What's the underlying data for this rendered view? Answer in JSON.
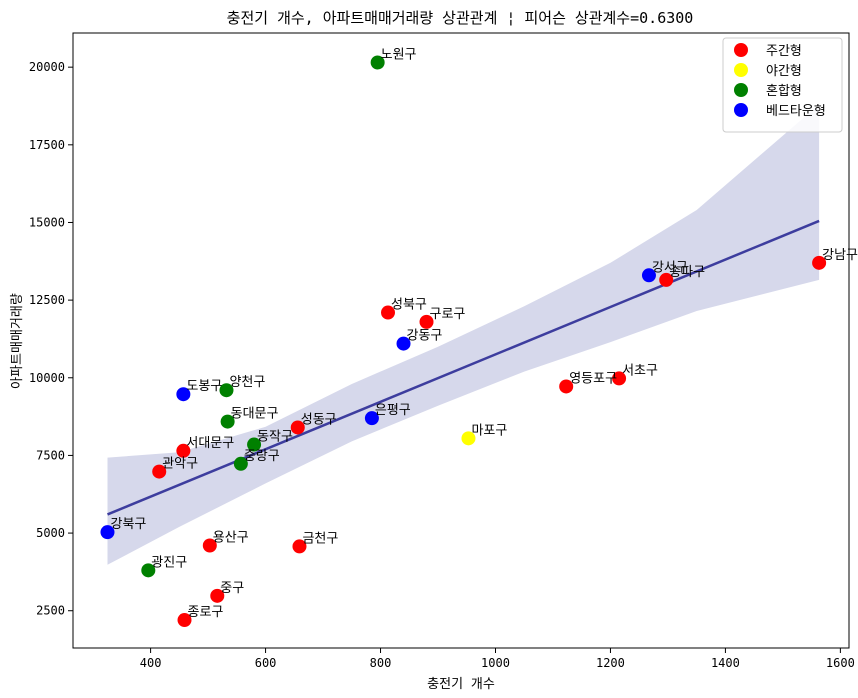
{
  "chart_data": {
    "type": "scatter",
    "title": "충전기 개수, 아파트매매거래량 상관관계 ¦ 피어슨 상관계수=0.6300",
    "xlabel": "충전기 개수",
    "ylabel": "아파트매매거래량",
    "xlim": [
      265,
      1615
    ],
    "ylim": [
      1300,
      21100
    ],
    "xticks": [
      400,
      600,
      800,
      1000,
      1200,
      1400,
      1600
    ],
    "yticks": [
      2500,
      5000,
      7500,
      10000,
      12500,
      15000,
      17500,
      20000
    ],
    "legend_position": "top-right",
    "series": [
      {
        "name": "주간형",
        "color": "#ff0000"
      },
      {
        "name": "야간형",
        "color": "#ffff00"
      },
      {
        "name": "혼합형",
        "color": "#008000"
      },
      {
        "name": "베드타운형",
        "color": "#0000ff"
      }
    ],
    "points": [
      {
        "label": "노원구",
        "x": 795,
        "y": 20150,
        "series": "혼합형"
      },
      {
        "label": "강남구",
        "x": 1563,
        "y": 13700,
        "series": "주간형"
      },
      {
        "label": "강서구",
        "x": 1267,
        "y": 13300,
        "series": "베드타운형"
      },
      {
        "label": "송파구",
        "x": 1297,
        "y": 13150,
        "series": "주간형"
      },
      {
        "label": "성북구",
        "x": 813,
        "y": 12100,
        "series": "주간형"
      },
      {
        "label": "구로구",
        "x": 880,
        "y": 11800,
        "series": "주간형"
      },
      {
        "label": "강동구",
        "x": 840,
        "y": 11100,
        "series": "베드타운형"
      },
      {
        "label": "서초구",
        "x": 1215,
        "y": 9980,
        "series": "주간형"
      },
      {
        "label": "영등포구",
        "x": 1123,
        "y": 9720,
        "series": "주간형"
      },
      {
        "label": "도봉구",
        "x": 457,
        "y": 9470,
        "series": "베드타운형"
      },
      {
        "label": "양천구",
        "x": 532,
        "y": 9600,
        "series": "혼합형"
      },
      {
        "label": "은평구",
        "x": 785,
        "y": 8700,
        "series": "베드타운형"
      },
      {
        "label": "동대문구",
        "x": 534,
        "y": 8590,
        "series": "혼합형"
      },
      {
        "label": "성동구",
        "x": 656,
        "y": 8400,
        "series": "주간형"
      },
      {
        "label": "마포구",
        "x": 953,
        "y": 8050,
        "series": "야간형"
      },
      {
        "label": "동작구",
        "x": 580,
        "y": 7850,
        "series": "혼합형"
      },
      {
        "label": "서대문구",
        "x": 457,
        "y": 7650,
        "series": "주간형"
      },
      {
        "label": "중랑구",
        "x": 557,
        "y": 7230,
        "series": "혼합형"
      },
      {
        "label": "관악구",
        "x": 415,
        "y": 6980,
        "series": "주간형"
      },
      {
        "label": "강북구",
        "x": 325,
        "y": 5030,
        "series": "베드타운형"
      },
      {
        "label": "용산구",
        "x": 503,
        "y": 4600,
        "series": "주간형"
      },
      {
        "label": "금천구",
        "x": 659,
        "y": 4570,
        "series": "주간형"
      },
      {
        "label": "광진구",
        "x": 396,
        "y": 3800,
        "series": "혼합형"
      },
      {
        "label": "중구",
        "x": 516,
        "y": 2980,
        "series": "주간형"
      },
      {
        "label": "종로구",
        "x": 459,
        "y": 2200,
        "series": "주간형"
      }
    ],
    "regression_line": {
      "x": [
        325,
        1563
      ],
      "y": [
        5600,
        15050
      ],
      "color": "#3d3d9e"
    },
    "confidence_band": {
      "x": [
        325,
        450,
        600,
        750,
        900,
        1050,
        1200,
        1350,
        1563
      ],
      "upper": [
        7430,
        7600,
        8420,
        9800,
        11000,
        12300,
        13700,
        15400,
        18800
      ],
      "lower": [
        3980,
        5200,
        6600,
        7950,
        9100,
        10200,
        11150,
        12150,
        13150
      ],
      "color": "#d6d8eb"
    }
  }
}
